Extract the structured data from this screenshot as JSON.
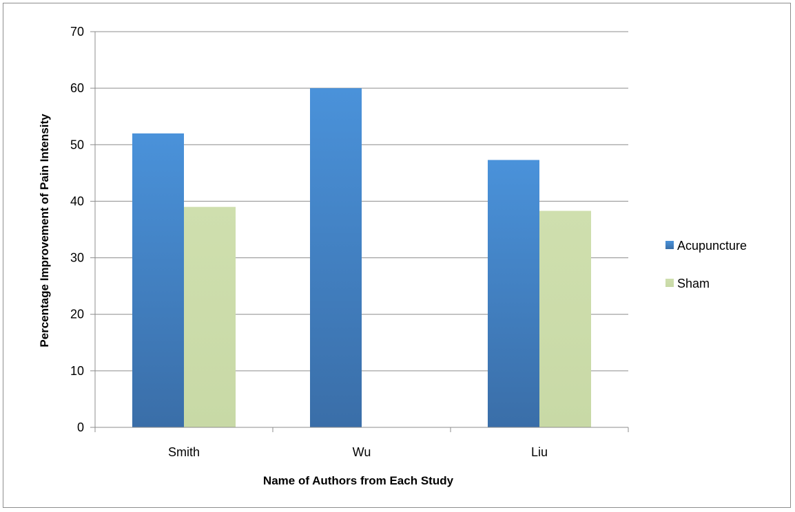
{
  "chart_data": {
    "type": "bar",
    "title": "",
    "xlabel": "Name of Authors from Each Study",
    "ylabel": "Percentage Improvement of Pain Intensity",
    "categories": [
      "Smith",
      "Wu",
      "Liu"
    ],
    "series": [
      {
        "name": "Acupuncture",
        "values": [
          52,
          60,
          47.3
        ],
        "color": "#4a8fd4"
      },
      {
        "name": "Sham",
        "values": [
          39,
          0,
          38.3
        ],
        "color": "#cfdfae"
      }
    ],
    "ylim": [
      0,
      70
    ],
    "yticks": [
      0,
      10,
      20,
      30,
      40,
      50,
      60,
      70
    ],
    "grid": true,
    "legend_position": "right"
  }
}
